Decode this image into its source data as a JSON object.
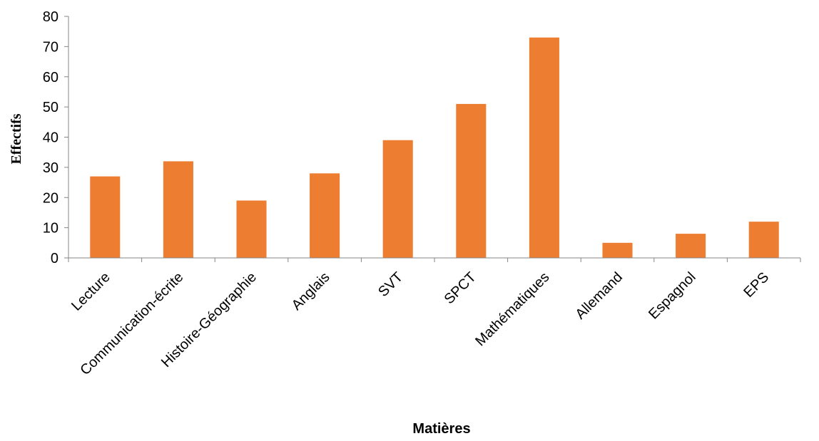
{
  "chart_data": {
    "type": "bar",
    "title": "",
    "xlabel": "Matières",
    "ylabel": "Effectifs",
    "ylim": [
      0,
      80
    ],
    "yticks": [
      0,
      10,
      20,
      30,
      40,
      50,
      60,
      70,
      80
    ],
    "grid": false,
    "legend": "none",
    "categories": [
      "Lecture",
      "Communication-écrite",
      "Histoire-Géographie",
      "Anglais",
      "SVT",
      "SPCT",
      "Mathématiques",
      "Allemand",
      "Espagnol",
      "EPS"
    ],
    "series": [
      {
        "values": [
          27,
          32,
          19,
          28,
          39,
          51,
          73,
          5,
          8,
          12
        ],
        "color": "#ED7D31"
      }
    ]
  }
}
